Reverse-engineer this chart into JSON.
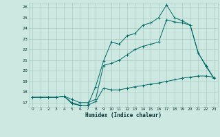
{
  "xlabel": "Humidex (Indice chaleur)",
  "background_color": "#cce8e0",
  "grid_color": "#aaccc4",
  "line_color": "#006868",
  "xlim": [
    -0.5,
    23.5
  ],
  "ylim": [
    16.6,
    26.4
  ],
  "yticks": [
    17,
    18,
    19,
    20,
    21,
    22,
    23,
    24,
    25,
    26
  ],
  "xticks": [
    0,
    1,
    2,
    3,
    4,
    5,
    6,
    7,
    8,
    9,
    10,
    11,
    12,
    13,
    14,
    15,
    16,
    17,
    18,
    19,
    20,
    21,
    22,
    23
  ],
  "line1_x": [
    0,
    1,
    2,
    3,
    4,
    5,
    6,
    7,
    8,
    9,
    10,
    11,
    12,
    13,
    14,
    15,
    16,
    17,
    18,
    19,
    20,
    21,
    22,
    23
  ],
  "line1_y": [
    17.5,
    17.5,
    17.5,
    17.5,
    17.6,
    16.9,
    16.75,
    16.75,
    17.1,
    18.35,
    18.2,
    18.2,
    18.35,
    18.5,
    18.6,
    18.75,
    18.85,
    19.0,
    19.15,
    19.3,
    19.4,
    19.5,
    19.5,
    19.4
  ],
  "line2_x": [
    0,
    1,
    2,
    3,
    4,
    5,
    6,
    7,
    8,
    9,
    10,
    11,
    12,
    13,
    14,
    15,
    16,
    17,
    18,
    19,
    20,
    21,
    22,
    23
  ],
  "line2_y": [
    17.5,
    17.5,
    17.5,
    17.5,
    17.6,
    17.3,
    17.0,
    17.0,
    17.3,
    20.5,
    20.7,
    21.0,
    21.5,
    22.0,
    22.3,
    22.5,
    22.7,
    24.8,
    24.6,
    24.5,
    24.3,
    21.7,
    20.5,
    19.3
  ],
  "line3_x": [
    0,
    1,
    2,
    3,
    4,
    5,
    6,
    7,
    8,
    9,
    10,
    11,
    12,
    13,
    14,
    15,
    16,
    17,
    18,
    19,
    20,
    21,
    22,
    23
  ],
  "line3_y": [
    17.5,
    17.5,
    17.5,
    17.5,
    17.6,
    17.0,
    16.75,
    16.75,
    18.5,
    20.9,
    22.7,
    22.5,
    23.3,
    23.5,
    24.3,
    24.5,
    25.0,
    26.2,
    25.0,
    24.7,
    24.3,
    21.7,
    20.4,
    19.3
  ]
}
